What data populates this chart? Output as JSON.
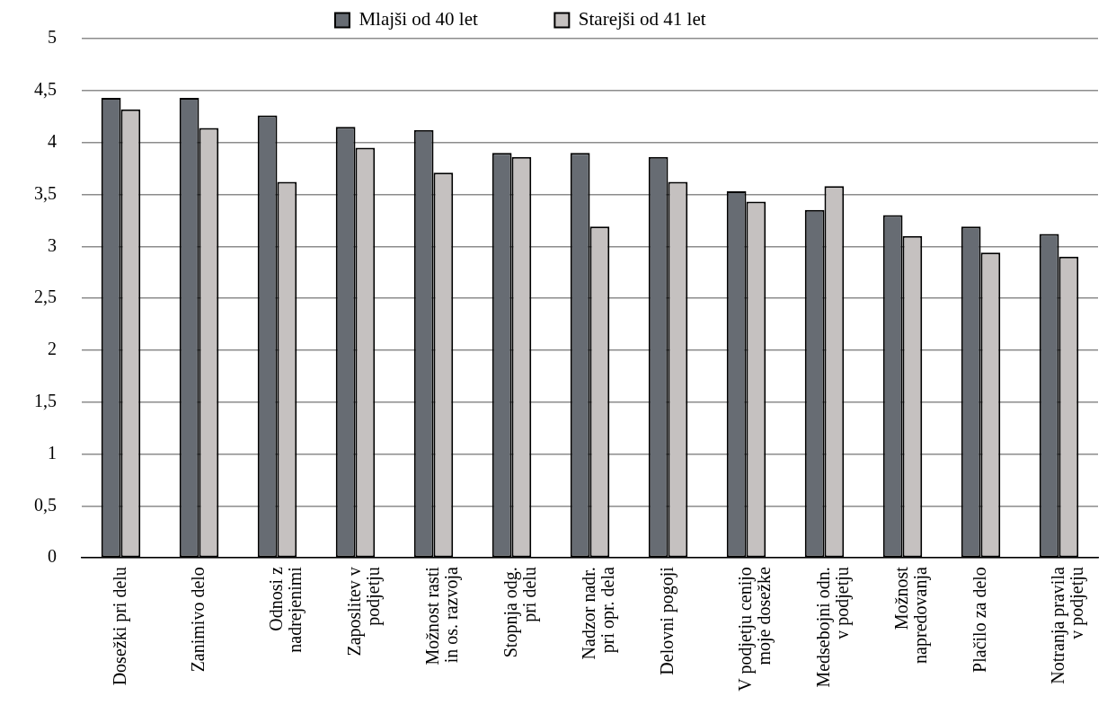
{
  "chart_data": {
    "type": "bar",
    "categories": [
      "Dosežki pri delu",
      "Zanimivo delo",
      "Odnosi z\nnadrejenimi",
      "Zaposlitev v\npodjetju",
      "Možnost rasti\nin os. razvoja",
      "Stopnja odg.\npri delu",
      "Nadzor nadr.\npri opr. dela",
      "Delovni pogoji",
      "V podjetju cenijo\nmoje dosežke",
      "Medsebojni odn.\nv podjetju",
      "Možnost\nnapredovanja",
      "Plačilo za delo",
      "Notranja pravila\nv podjetju"
    ],
    "series": [
      {
        "name": "Mlajši od 40 let",
        "color": "#676c73",
        "values": [
          4.43,
          4.43,
          4.26,
          4.15,
          4.12,
          3.9,
          3.9,
          3.86,
          3.53,
          3.35,
          3.3,
          3.19,
          3.12
        ]
      },
      {
        "name": "Starejši od 41 let",
        "color": "#c5c1c0",
        "values": [
          4.32,
          4.14,
          3.62,
          3.95,
          3.71,
          3.86,
          3.19,
          3.62,
          3.43,
          3.58,
          3.1,
          2.94,
          2.9
        ]
      }
    ],
    "ylim": [
      0,
      5
    ],
    "yticks": [
      0,
      {
        "value": 0.5,
        "label": "0,5"
      },
      1,
      {
        "value": 1.5,
        "label": "1,5"
      },
      2,
      {
        "value": 2.5,
        "label": "2,5"
      },
      3,
      {
        "value": 3.5,
        "label": "3,5"
      },
      4,
      {
        "value": 4.5,
        "label": "4,5"
      },
      5
    ],
    "grid": "y",
    "legend": "top"
  }
}
